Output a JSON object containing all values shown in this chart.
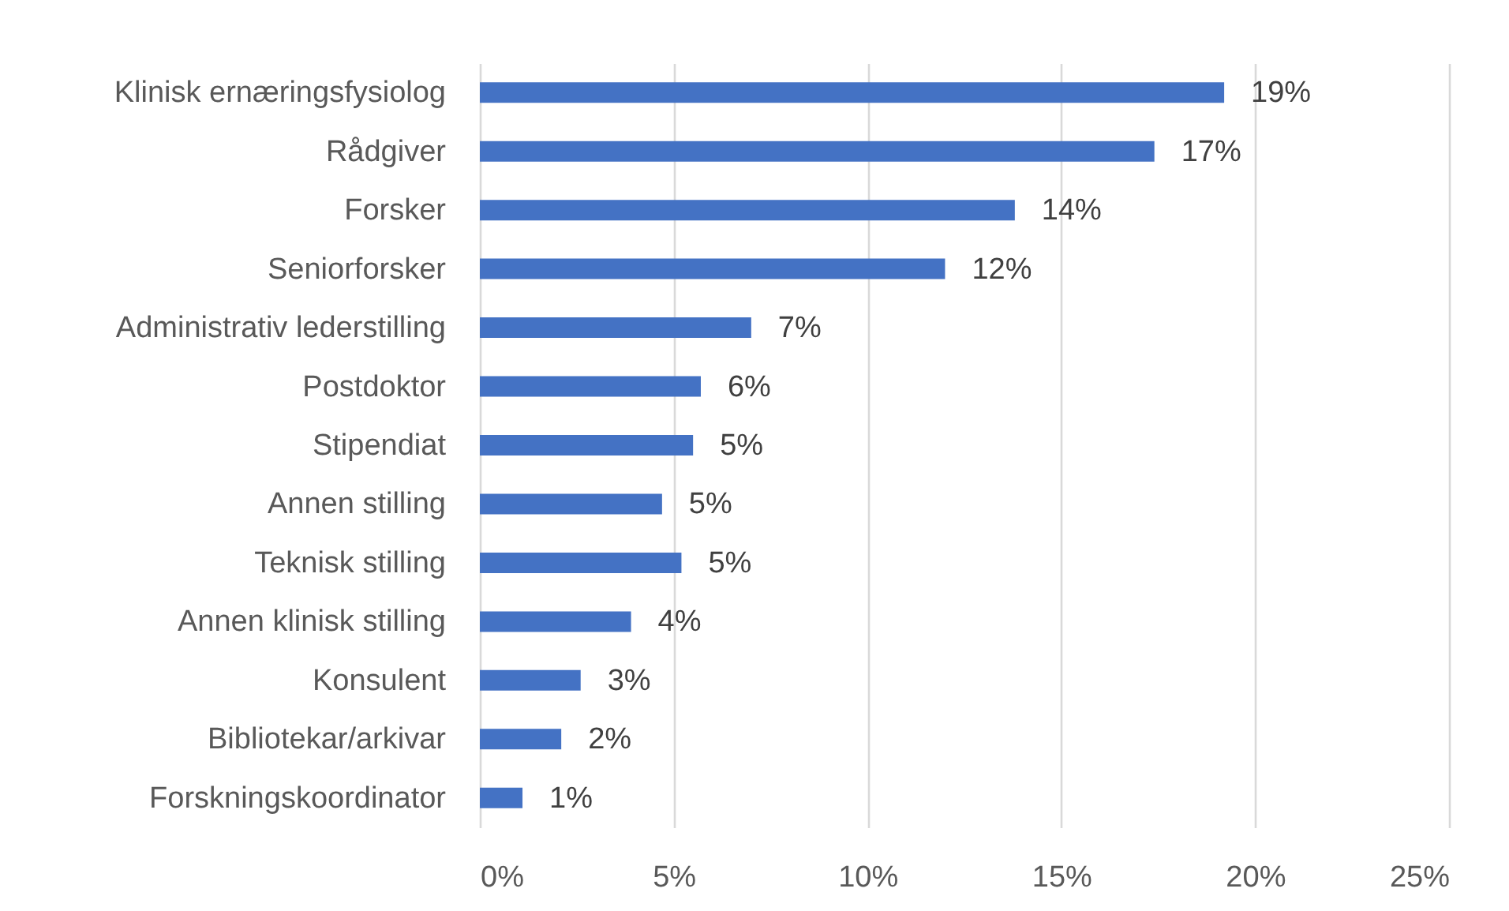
{
  "chart_data": {
    "type": "bar",
    "orientation": "horizontal",
    "categories": [
      "Klinisk ernæringsfysiolog",
      "Rådgiver",
      "Forsker",
      "Seniorforsker",
      "Administrativ lederstilling",
      "Postdoktor",
      "Stipendiat",
      "Annen stilling",
      "Teknisk stilling",
      "Annen klinisk stilling",
      "Konsulent",
      "Bibliotekar/arkivar",
      "Forskningskoordinator"
    ],
    "values": [
      19.2,
      17.4,
      13.8,
      12.0,
      7.0,
      5.7,
      5.5,
      4.7,
      5.2,
      3.9,
      2.6,
      2.1,
      1.1
    ],
    "value_labels": [
      "19%",
      "17%",
      "14%",
      "12%",
      "7%",
      "6%",
      "5%",
      "5%",
      "5%",
      "4%",
      "3%",
      "2%",
      "1%"
    ],
    "color": "#4472c4",
    "xlim": [
      0,
      25
    ],
    "xticks": [
      {
        "value": 0,
        "label": "0%"
      },
      {
        "value": 5,
        "label": "5%"
      },
      {
        "value": 10,
        "label": "10%"
      },
      {
        "value": 15,
        "label": "15%"
      },
      {
        "value": 20,
        "label": "20%"
      },
      {
        "value": 25,
        "label": "25%"
      }
    ],
    "grid": "x"
  }
}
